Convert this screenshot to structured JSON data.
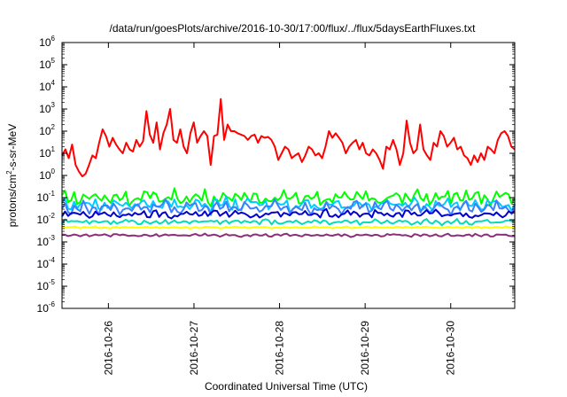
{
  "chart_data": {
    "type": "line",
    "title": "/data/run/goesPlots/archive/2016-10-30/17:00/flux/../flux/5daysEarthFluxes.txt",
    "xlabel": "Coordinated Universal Time (UTC)",
    "ylabel_parts": [
      "protons/cm",
      "2",
      "-s-sr-MeV"
    ],
    "yscale": "log",
    "ylim_exp": [
      -6,
      6
    ],
    "y_ticks": [
      {
        "base": "10",
        "exp": "-6"
      },
      {
        "base": "10",
        "exp": "-5"
      },
      {
        "base": "10",
        "exp": "-4"
      },
      {
        "base": "10",
        "exp": "-3"
      },
      {
        "base": "10",
        "exp": "-2"
      },
      {
        "base": "10",
        "exp": "-1"
      },
      {
        "base": "10",
        "exp": "0"
      },
      {
        "base": "10",
        "exp": "1"
      },
      {
        "base": "10",
        "exp": "2"
      },
      {
        "base": "10",
        "exp": "3"
      },
      {
        "base": "10",
        "exp": "4"
      },
      {
        "base": "10",
        "exp": "5"
      },
      {
        "base": "10",
        "exp": "6"
      }
    ],
    "x_range": [
      "2016-10-25 11:00",
      "2016-10-30 18:00"
    ],
    "x_ticks": [
      "2016-10-26",
      "2016-10-27",
      "2016-10-28",
      "2016-10-29",
      "2016-10-30"
    ],
    "x_tick_days": [
      0.542,
      1.542,
      2.542,
      3.542,
      4.542
    ],
    "x_span_days": 5.29,
    "grid": false,
    "series": [
      {
        "color": "#ff0000",
        "width": 2,
        "values": [
          8,
          15,
          6,
          25,
          3,
          1.5,
          0.9,
          1.2,
          3,
          8,
          6,
          30,
          120,
          60,
          20,
          50,
          25,
          15,
          10,
          30,
          15,
          12,
          40,
          20,
          35,
          800,
          70,
          30,
          250,
          15,
          80,
          200,
          1000,
          40,
          30,
          120,
          20,
          10,
          80,
          250,
          30,
          60,
          100,
          60,
          3,
          60,
          70,
          2800,
          40,
          200,
          100,
          100,
          80,
          70,
          60,
          40,
          60,
          70,
          30,
          60,
          50,
          55,
          40,
          20,
          5,
          10,
          20,
          15,
          6,
          8,
          10,
          4,
          8,
          20,
          15,
          8,
          10,
          6,
          20,
          100,
          50,
          80,
          50,
          30,
          10,
          20,
          30,
          40,
          15,
          30,
          10,
          8,
          15,
          10,
          5,
          2,
          20,
          15,
          40,
          15,
          3,
          10,
          300,
          30,
          10,
          15,
          200,
          15,
          8,
          5,
          30,
          20,
          100,
          60,
          20,
          30,
          50,
          15,
          20,
          8,
          6,
          3,
          8,
          4,
          10,
          5,
          20,
          15,
          10,
          40,
          80,
          100,
          60,
          20,
          15
        ]
      },
      {
        "color": "#00ff00",
        "width": 2,
        "center": 0.1,
        "amp": 0.4
      },
      {
        "color": "#00ccff",
        "width": 2,
        "center": 0.05,
        "amp": 0.35
      },
      {
        "color": "#3b7fff",
        "width": 2,
        "center": 0.035,
        "amp": 0.35
      },
      {
        "color": "#0000cc",
        "width": 2,
        "center": 0.018,
        "amp": 0.22
      },
      {
        "color": "#00ddbb",
        "width": 2,
        "center": 0.008,
        "amp": 0.15
      },
      {
        "color": "#ffff00",
        "width": 2,
        "center": 0.0045,
        "amp": 0.05
      },
      {
        "color": "#8b2e7a",
        "width": 2,
        "center": 0.002,
        "amp": 0.08
      }
    ]
  }
}
